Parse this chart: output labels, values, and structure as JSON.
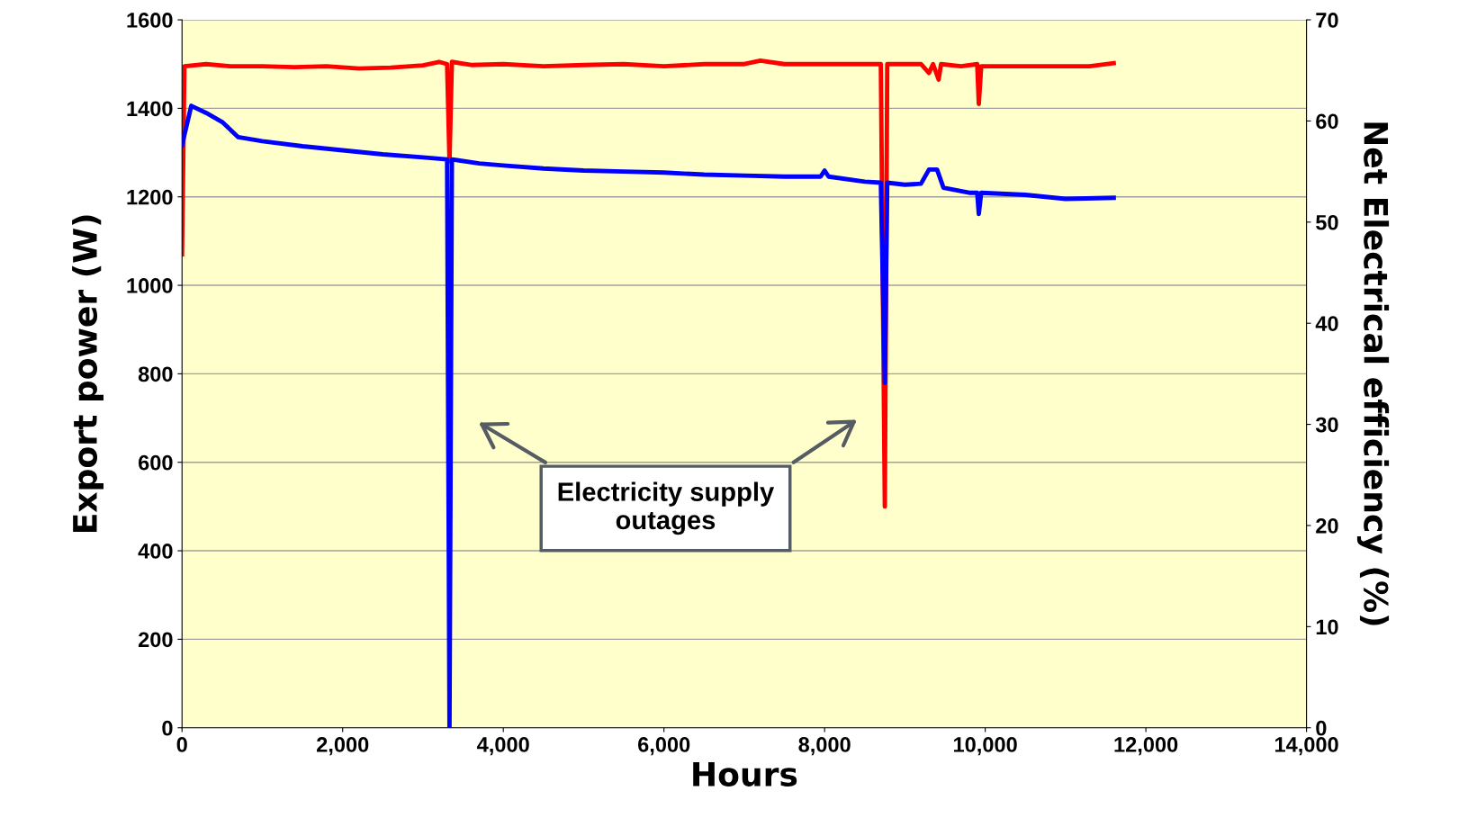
{
  "chart_data": {
    "type": "line",
    "xlabel": "Hours",
    "ylabel": "Export power (W)",
    "y2label": "Net Electrical efficiency (%)",
    "xlim": [
      0,
      14000
    ],
    "xticks": [
      0,
      {
        "value": 2000,
        "label": "2,000"
      },
      {
        "value": 4000,
        "label": "4,000"
      },
      {
        "value": 6000,
        "label": "6,000"
      },
      {
        "value": 8000,
        "label": "8,000"
      },
      {
        "value": 10000,
        "label": "10,000"
      },
      {
        "value": 12000,
        "label": "12,000"
      },
      {
        "value": 14000,
        "label": "14,000"
      }
    ],
    "ylim": [
      0,
      1600
    ],
    "yticks": [
      0,
      200,
      400,
      600,
      800,
      1000,
      1200,
      1400,
      1600
    ],
    "y2lim": [
      0,
      70
    ],
    "y2ticks": [
      0,
      10,
      20,
      30,
      40,
      50,
      60,
      70
    ],
    "grid": "y",
    "legend": false,
    "marker": "none",
    "line_style": "solid",
    "annotations": [
      "Electricity supply\noutages"
    ],
    "series": [
      {
        "color": "#ff0000",
        "x": [
          0,
          30,
          300,
          600,
          1000,
          1400,
          1800,
          2200,
          2600,
          3000,
          3200,
          3300,
          3330,
          3360,
          3600,
          4000,
          4500,
          5000,
          5500,
          6000,
          6500,
          7000,
          7200,
          7500,
          8000,
          8500,
          8700,
          8750,
          8780,
          9000,
          9200,
          9300,
          9350,
          9420,
          9450,
          9700,
          9900,
          9920,
          9950,
          10300,
          10700,
          11000,
          11300,
          11600
        ],
        "values": [
          1070,
          1495,
          1500,
          1495,
          1495,
          1493,
          1495,
          1490,
          1492,
          1497,
          1505,
          1500,
          1280,
          1505,
          1498,
          1500,
          1495,
          1498,
          1500,
          1495,
          1500,
          1500,
          1508,
          1500,
          1500,
          1500,
          1500,
          500,
          1500,
          1500,
          1500,
          1480,
          1500,
          1465,
          1500,
          1495,
          1500,
          1410,
          1495,
          1495,
          1495,
          1495,
          1495,
          1502
        ]
      },
      {
        "color": "#0000ff",
        "axis": "y2",
        "x": [
          0,
          115,
          300,
          500,
          700,
          1000,
          1500,
          2000,
          2500,
          3000,
          3300,
          3330,
          3360,
          3700,
          4000,
          4500,
          5000,
          5500,
          6000,
          6500,
          7000,
          7500,
          7950,
          8000,
          8050,
          8500,
          8700,
          8750,
          8780,
          9000,
          9200,
          9300,
          9400,
          9480,
          9800,
          9900,
          9920,
          9950,
          10500,
          11000,
          11600
        ],
        "values": [
          57.6,
          61.5,
          60.8,
          59.9,
          58.4,
          58.0,
          57.5,
          57.1,
          56.7,
          56.4,
          56.2,
          0,
          56.2,
          55.8,
          55.6,
          55.3,
          55.1,
          55.0,
          54.9,
          54.7,
          54.6,
          54.5,
          54.5,
          55.1,
          54.5,
          54.0,
          53.9,
          34.1,
          53.9,
          53.7,
          53.8,
          55.2,
          55.2,
          53.4,
          52.9,
          52.9,
          50.8,
          52.9,
          52.7,
          52.3,
          52.4
        ]
      }
    ]
  }
}
